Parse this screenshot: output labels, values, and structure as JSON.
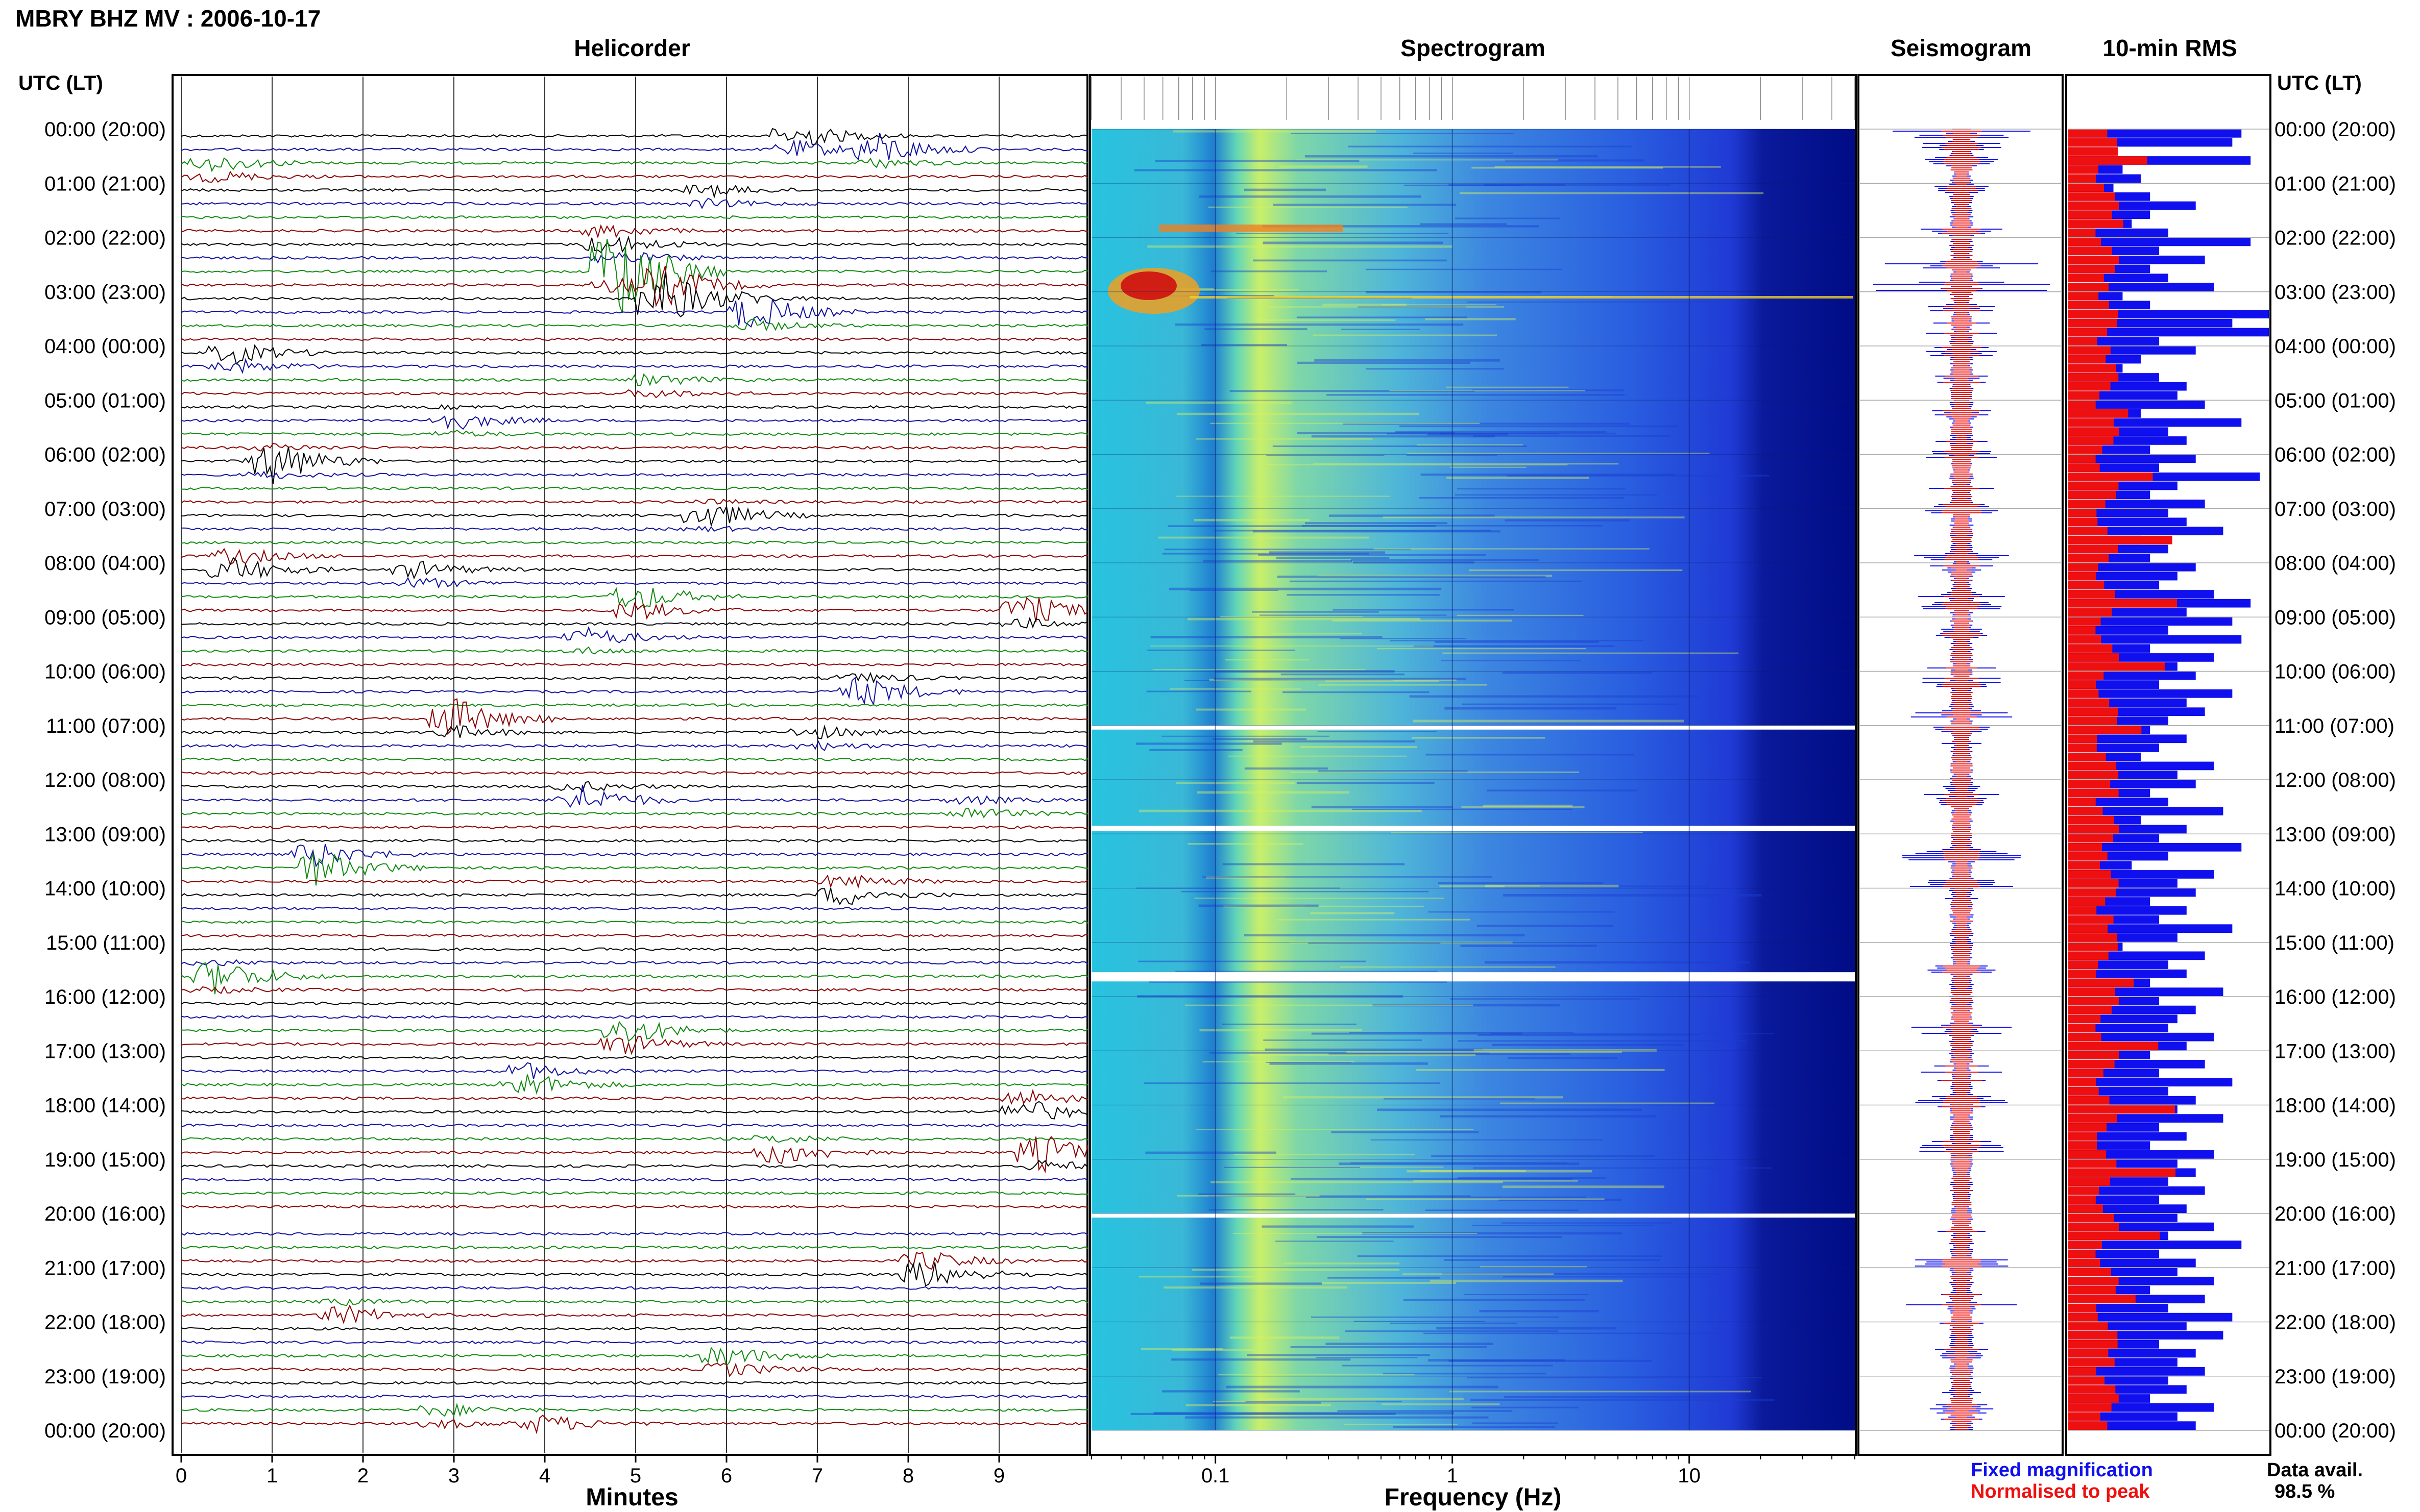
{
  "header": {
    "title": "MBRY BHZ MV : 2006-10-17"
  },
  "panels": {
    "helicorder": "Helicorder",
    "spectrogram": "Spectrogram",
    "seismogram": "Seismogram",
    "rms": "10-min RMS"
  },
  "axes": {
    "utc_lt_left": "UTC (LT)",
    "utc_lt_right": "UTC (LT)",
    "minutes_label": "Minutes",
    "frequency_label": "Frequency (Hz)"
  },
  "legend": {
    "fixed": "Fixed magnification",
    "normalised": "Normalised to peak",
    "fixed_color": "#1010ee",
    "normalised_color": "#ee1010"
  },
  "data_availability": {
    "label": "Data avail.",
    "value": "98.5 %"
  },
  "chart_data": {
    "type": "helicorder",
    "time_labels": [
      "00:00 (20:00)",
      "01:00 (21:00)",
      "02:00 (22:00)",
      "03:00 (23:00)",
      "04:00 (00:00)",
      "05:00 (01:00)",
      "06:00 (02:00)",
      "07:00 (03:00)",
      "08:00 (04:00)",
      "09:00 (05:00)",
      "10:00 (06:00)",
      "11:00 (07:00)",
      "12:00 (08:00)",
      "13:00 (09:00)",
      "14:00 (10:00)",
      "15:00 (11:00)",
      "16:00 (12:00)",
      "17:00 (13:00)",
      "18:00 (14:00)",
      "19:00 (15:00)",
      "20:00 (16:00)",
      "21:00 (17:00)",
      "22:00 (18:00)",
      "23:00 (19:00)",
      "00:00 (20:00)"
    ],
    "minute_ticks": [
      "0",
      "1",
      "2",
      "3",
      "4",
      "5",
      "6",
      "7",
      "8",
      "9"
    ],
    "frequency_ticks": [
      "0.1",
      "1",
      "10"
    ],
    "frequency_range_hz": [
      0.03,
      50
    ],
    "trace_colors": [
      "#000000",
      "#1010a0",
      "#0f8a0f",
      "#8b0000"
    ],
    "events": [
      {
        "hour": 0.1,
        "minute": 6.8,
        "amp": 3.0
      },
      {
        "hour": 0.3,
        "minute": 7.7,
        "amp": 2.5
      },
      {
        "hour": 0.6,
        "minute": 0.4,
        "amp": 2.0
      },
      {
        "hour": 1.1,
        "minute": 5.8,
        "amp": 1.5
      },
      {
        "hour": 1.9,
        "minute": 4.7,
        "amp": 2.5
      },
      {
        "hour": 2.5,
        "minute": 4.8,
        "amp": 6.0
      },
      {
        "hour": 2.9,
        "minute": 5.3,
        "amp": 7.0
      },
      {
        "hour": 3.3,
        "minute": 6.3,
        "amp": 3.0
      },
      {
        "hour": 4.1,
        "minute": 0.6,
        "amp": 2.5
      },
      {
        "hour": 4.6,
        "minute": 5.2,
        "amp": 1.5
      },
      {
        "hour": 5.3,
        "minute": 3.0,
        "amp": 1.5
      },
      {
        "hour": 6.0,
        "minute": 1.0,
        "amp": 2.5
      },
      {
        "hour": 7.0,
        "minute": 5.8,
        "amp": 1.5
      },
      {
        "hour": 7.9,
        "minute": 0.6,
        "amp": 3.0
      },
      {
        "hour": 8.1,
        "minute": 2.6,
        "amp": 2.0
      },
      {
        "hour": 8.6,
        "minute": 5.0,
        "amp": 3.5
      },
      {
        "hour": 8.8,
        "minute": 9.3,
        "amp": 2.5
      },
      {
        "hour": 9.3,
        "minute": 4.5,
        "amp": 1.5
      },
      {
        "hour": 10.2,
        "minute": 7.5,
        "amp": 2.5
      },
      {
        "hour": 10.8,
        "minute": 3.0,
        "amp": 3.5
      },
      {
        "hour": 11.1,
        "minute": 7.0,
        "amp": 1.5
      },
      {
        "hour": 12.2,
        "minute": 4.4,
        "amp": 2.5
      },
      {
        "hour": 12.4,
        "minute": 8.7,
        "amp": 1.5
      },
      {
        "hour": 13.4,
        "minute": 1.5,
        "amp": 4.5
      },
      {
        "hour": 13.9,
        "minute": 7.3,
        "amp": 2.5
      },
      {
        "hour": 15.5,
        "minute": 0.4,
        "amp": 2.0
      },
      {
        "hour": 16.6,
        "minute": 4.9,
        "amp": 3.5
      },
      {
        "hour": 17.4,
        "minute": 3.8,
        "amp": 3.0
      },
      {
        "hour": 17.9,
        "minute": 9.3,
        "amp": 3.0
      },
      {
        "hour": 18.8,
        "minute": 9.5,
        "amp": 3.0
      },
      {
        "hour": 18.7,
        "minute": 6.6,
        "amp": 2.0
      },
      {
        "hour": 20.9,
        "minute": 8.2,
        "amp": 3.5
      },
      {
        "hour": 21.7,
        "minute": 1.8,
        "amp": 1.5
      },
      {
        "hour": 22.6,
        "minute": 6.0,
        "amp": 2.5
      },
      {
        "hour": 23.6,
        "minute": 2.9,
        "amp": 1.5
      },
      {
        "hour": 23.8,
        "minute": 4.0,
        "amp": 1.5
      }
    ],
    "gaps_hours": [
      [
        15.55,
        15.72
      ],
      [
        20.0,
        20.05
      ],
      [
        11.0,
        11.05
      ],
      [
        12.85,
        12.95
      ]
    ],
    "rms_blue": [
      1.9,
      1.8,
      0.5,
      2.0,
      0.6,
      0.8,
      0.5,
      0.9,
      1.4,
      0.9,
      0.7,
      1.1,
      2.0,
      1.0,
      1.5,
      0.9,
      1.1,
      1.6,
      0.6,
      0.9,
      2.2,
      1.8,
      2.2,
      1.0,
      1.4,
      0.8,
      0.6,
      1.0,
      1.3,
      1.2,
      1.5,
      0.8,
      1.9,
      1.1,
      1.3,
      0.9,
      1.4,
      1.0,
      2.1,
      1.2,
      0.9,
      1.5,
      1.1,
      1.3,
      1.7,
      0.8,
      1.1,
      0.9,
      1.4,
      1.2,
      1.0,
      1.6,
      2.0,
      1.3,
      1.8,
      1.1,
      1.9,
      0.9,
      1.6,
      1.2,
      1.4,
      1.0,
      1.8,
      1.3,
      1.5,
      1.1,
      0.9,
      1.3,
      1.0,
      0.8,
      1.6,
      1.2,
      1.4,
      0.9,
      1.1,
      1.7,
      0.8,
      1.3,
      1.0,
      1.9,
      1.1,
      0.7,
      1.6,
      1.2,
      1.4,
      0.9,
      1.3,
      1.0,
      1.8,
      1.2,
      0.6,
      1.5,
      1.1,
      1.3,
      0.9,
      1.7,
      1.0,
      1.4,
      1.2,
      1.1,
      1.6,
      1.3,
      0.9,
      1.5,
      1.0,
      1.8,
      1.1,
      1.4,
      1.2,
      1.7,
      1.0,
      1.3,
      0.9,
      1.6,
      1.2,
      1.4,
      1.1,
      1.5,
      1.0,
      1.3,
      1.2,
      1.6,
      1.1,
      1.9,
      1.0,
      1.4,
      1.2,
      1.6,
      0.9,
      1.5,
      1.1,
      1.8,
      1.3,
      1.7,
      1.0,
      1.4,
      1.2,
      1.5,
      1.1,
      1.3,
      0.9,
      1.6,
      1.2,
      1.4
    ]
  }
}
